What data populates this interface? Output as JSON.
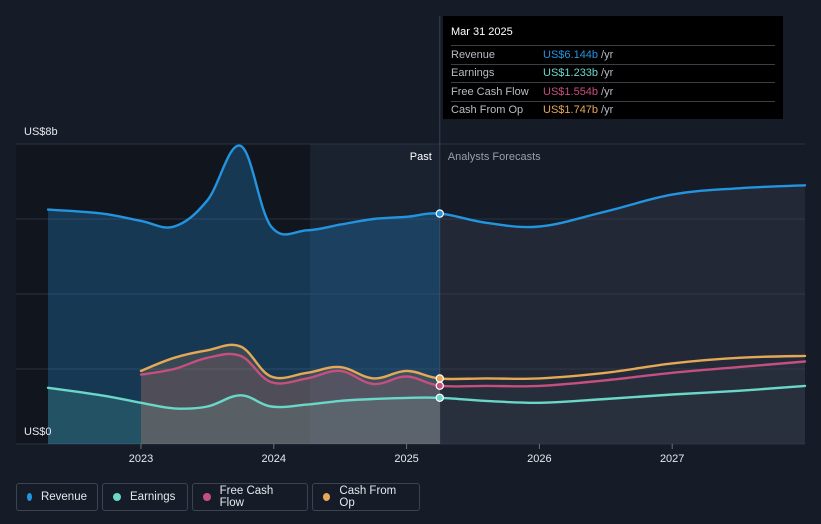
{
  "chart_data": {
    "type": "line",
    "y_axis": {
      "top_label": "US$8b",
      "bottom_label": "US$0",
      "ylim": [
        0,
        8
      ]
    },
    "x_range": [
      2022.3,
      2028.0
    ],
    "x_ticks": [
      "2023",
      "2024",
      "2025",
      "2026",
      "2027"
    ],
    "divider_x": 2025.25,
    "past_label": "Past",
    "forecast_label": "Analysts Forecasts",
    "series": [
      {
        "name": "Revenue",
        "color": "#2394df",
        "points": [
          [
            2022.3,
            6.25
          ],
          [
            2022.7,
            6.15
          ],
          [
            2023.0,
            5.95
          ],
          [
            2023.25,
            5.8
          ],
          [
            2023.5,
            6.5
          ],
          [
            2023.75,
            7.95
          ],
          [
            2023.98,
            5.8
          ],
          [
            2024.25,
            5.7
          ],
          [
            2024.5,
            5.85
          ],
          [
            2024.75,
            6.0
          ],
          [
            2025.0,
            6.06
          ],
          [
            2025.25,
            6.144
          ],
          [
            2025.6,
            5.9
          ],
          [
            2026.0,
            5.8
          ],
          [
            2026.5,
            6.2
          ],
          [
            2027.0,
            6.65
          ],
          [
            2027.5,
            6.82
          ],
          [
            2028.0,
            6.9
          ]
        ]
      },
      {
        "name": "Earnings",
        "color": "#6ad7c9",
        "points": [
          [
            2022.3,
            1.5
          ],
          [
            2022.7,
            1.3
          ],
          [
            2023.0,
            1.1
          ],
          [
            2023.25,
            0.95
          ],
          [
            2023.5,
            1.0
          ],
          [
            2023.75,
            1.3
          ],
          [
            2023.98,
            1.0
          ],
          [
            2024.25,
            1.05
          ],
          [
            2024.5,
            1.15
          ],
          [
            2024.75,
            1.2
          ],
          [
            2025.0,
            1.23
          ],
          [
            2025.25,
            1.233
          ],
          [
            2025.6,
            1.15
          ],
          [
            2026.0,
            1.1
          ],
          [
            2026.5,
            1.2
          ],
          [
            2027.0,
            1.32
          ],
          [
            2027.5,
            1.42
          ],
          [
            2028.0,
            1.55
          ]
        ]
      },
      {
        "name": "Free Cash Flow",
        "color": "#c54f7f",
        "points": [
          [
            2023.0,
            1.85
          ],
          [
            2023.25,
            2.0
          ],
          [
            2023.5,
            2.3
          ],
          [
            2023.75,
            2.35
          ],
          [
            2023.98,
            1.65
          ],
          [
            2024.25,
            1.75
          ],
          [
            2024.5,
            1.95
          ],
          [
            2024.75,
            1.6
          ],
          [
            2025.0,
            1.8
          ],
          [
            2025.25,
            1.554
          ],
          [
            2025.6,
            1.55
          ],
          [
            2026.0,
            1.55
          ],
          [
            2026.5,
            1.7
          ],
          [
            2027.0,
            1.9
          ],
          [
            2027.5,
            2.05
          ],
          [
            2028.0,
            2.2
          ]
        ]
      },
      {
        "name": "Cash From Op",
        "color": "#e5a857",
        "points": [
          [
            2023.0,
            1.95
          ],
          [
            2023.25,
            2.3
          ],
          [
            2023.5,
            2.5
          ],
          [
            2023.75,
            2.6
          ],
          [
            2023.98,
            1.8
          ],
          [
            2024.25,
            1.9
          ],
          [
            2024.5,
            2.05
          ],
          [
            2024.75,
            1.75
          ],
          [
            2025.0,
            1.95
          ],
          [
            2025.25,
            1.747
          ],
          [
            2025.6,
            1.75
          ],
          [
            2026.0,
            1.75
          ],
          [
            2026.5,
            1.9
          ],
          [
            2027.0,
            2.15
          ],
          [
            2027.5,
            2.3
          ],
          [
            2028.0,
            2.35
          ]
        ]
      }
    ]
  },
  "tooltip": {
    "date": "Mar 31 2025",
    "rows": [
      {
        "label": "Revenue",
        "value": "US$6.144b",
        "unit": "/yr",
        "color": "#2394df"
      },
      {
        "label": "Earnings",
        "value": "US$1.233b",
        "unit": "/yr",
        "color": "#6ad7c9"
      },
      {
        "label": "Free Cash Flow",
        "value": "US$1.554b",
        "unit": "/yr",
        "color": "#c54f7f"
      },
      {
        "label": "Cash From Op",
        "value": "US$1.747b",
        "unit": "/yr",
        "color": "#e5a857"
      }
    ]
  },
  "legend": [
    {
      "label": "Revenue",
      "color": "#2394df"
    },
    {
      "label": "Earnings",
      "color": "#6ad7c9"
    },
    {
      "label": "Free Cash Flow",
      "color": "#c54f7f"
    },
    {
      "label": "Cash From Op",
      "color": "#e5a857"
    }
  ]
}
